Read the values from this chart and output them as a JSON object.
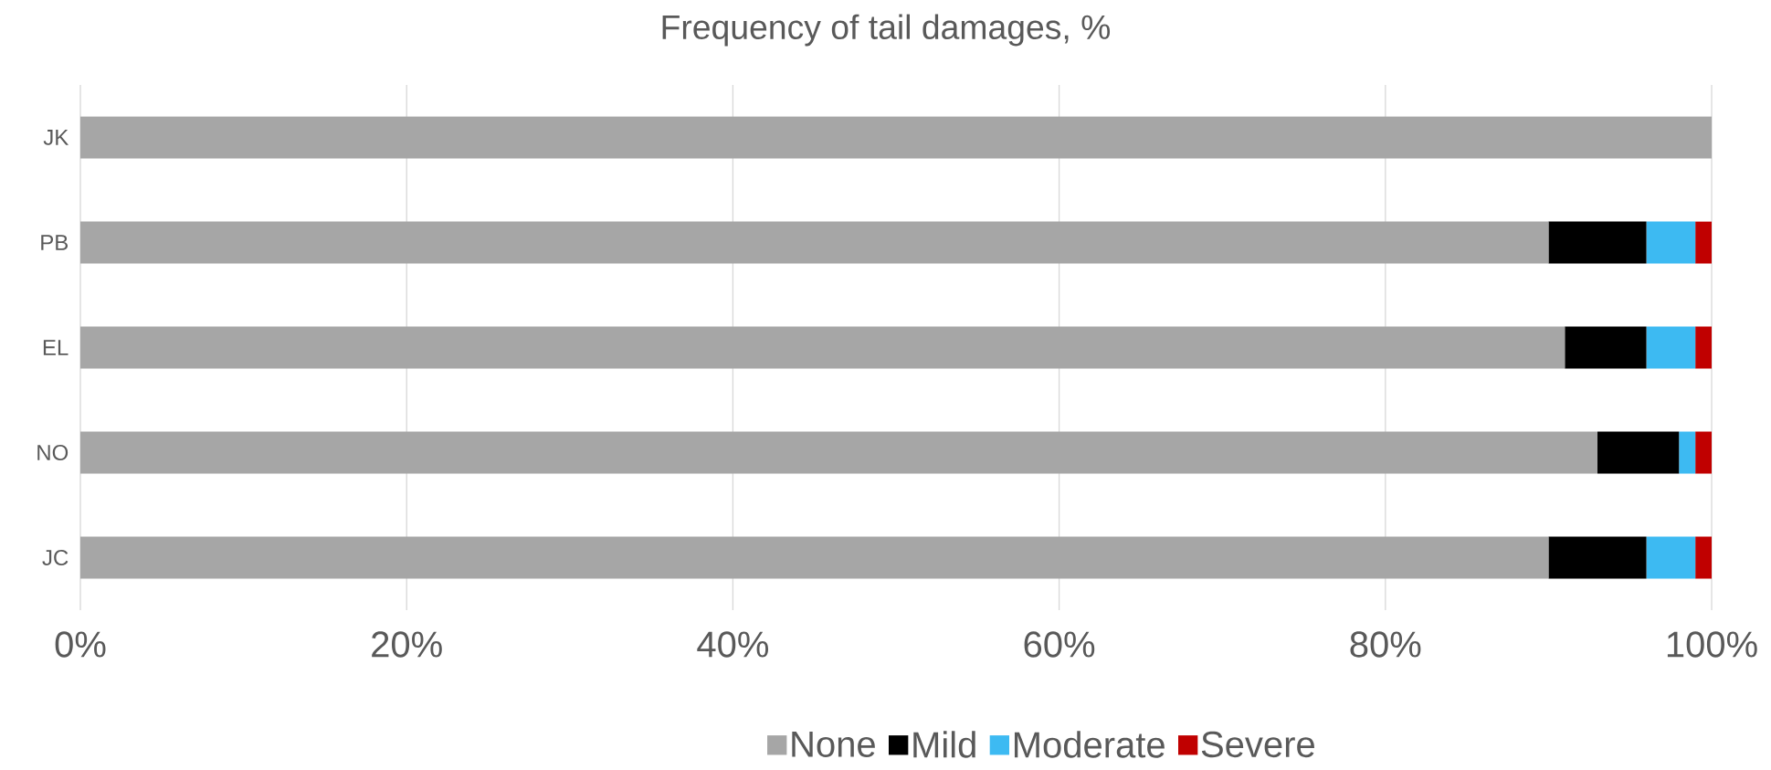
{
  "chart_data": {
    "type": "bar",
    "orientation": "horizontal",
    "stacked": true,
    "title": "Frequency of tail damages, %",
    "categories": [
      "JK",
      "PB",
      "EL",
      "NO",
      "JC"
    ],
    "series": [
      {
        "name": "None",
        "color": "#a6a6a6",
        "values": [
          100,
          90,
          91,
          93,
          90
        ]
      },
      {
        "name": "Mild",
        "color": "#000000",
        "values": [
          0,
          6,
          5,
          5,
          6
        ]
      },
      {
        "name": "Moderate",
        "color": "#3dbaf2",
        "values": [
          0,
          3,
          3,
          1,
          3
        ]
      },
      {
        "name": "Severe",
        "color": "#c00000",
        "values": [
          0,
          1,
          1,
          1,
          1
        ]
      }
    ],
    "xlim": [
      0,
      100
    ],
    "xticks": [
      {
        "value": 0,
        "label": "0%"
      },
      {
        "value": 20,
        "label": "20%"
      },
      {
        "value": 40,
        "label": "40%"
      },
      {
        "value": 60,
        "label": "60%"
      },
      {
        "value": 80,
        "label": "80%"
      },
      {
        "value": 100,
        "label": "100%"
      }
    ],
    "grid": "x",
    "legend": "bottom"
  }
}
